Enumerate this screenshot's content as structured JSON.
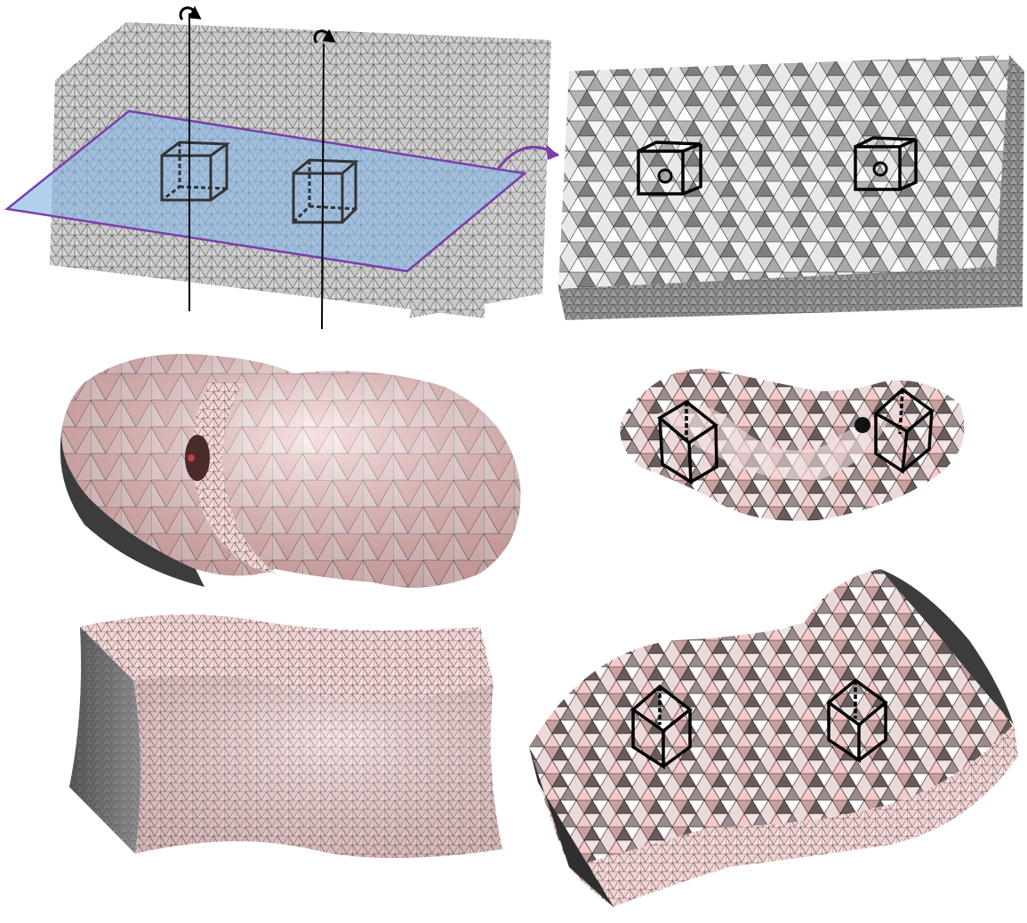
{
  "figure": {
    "panels": [
      {
        "id": "input-block-with-slice-plane",
        "shading": "gray-mesh"
      },
      {
        "id": "input-block-cut-interior",
        "shading": "gray-mesh"
      },
      {
        "id": "twisted-torus-shape",
        "shading": "pink-mesh"
      },
      {
        "id": "twisted-torus-cut-interior",
        "shading": "pink-mesh"
      },
      {
        "id": "deformed-block-exterior",
        "shading": "pink-mesh"
      },
      {
        "id": "deformed-block-cut-interior",
        "shading": "pink-mesh"
      }
    ],
    "rotation_axes": 2,
    "rotation_icon": "rotate-arrow-icon",
    "colors": {
      "mesh_gray": "#cfcfcf",
      "mesh_dark": "#5a5a5a",
      "mesh_pink": "#f4c8c8",
      "plane_fill": "#8ab8e6",
      "plane_edge": "#7a3fa8",
      "arrow": "#7a3fa8",
      "wireframe_cube": "#111111"
    }
  }
}
